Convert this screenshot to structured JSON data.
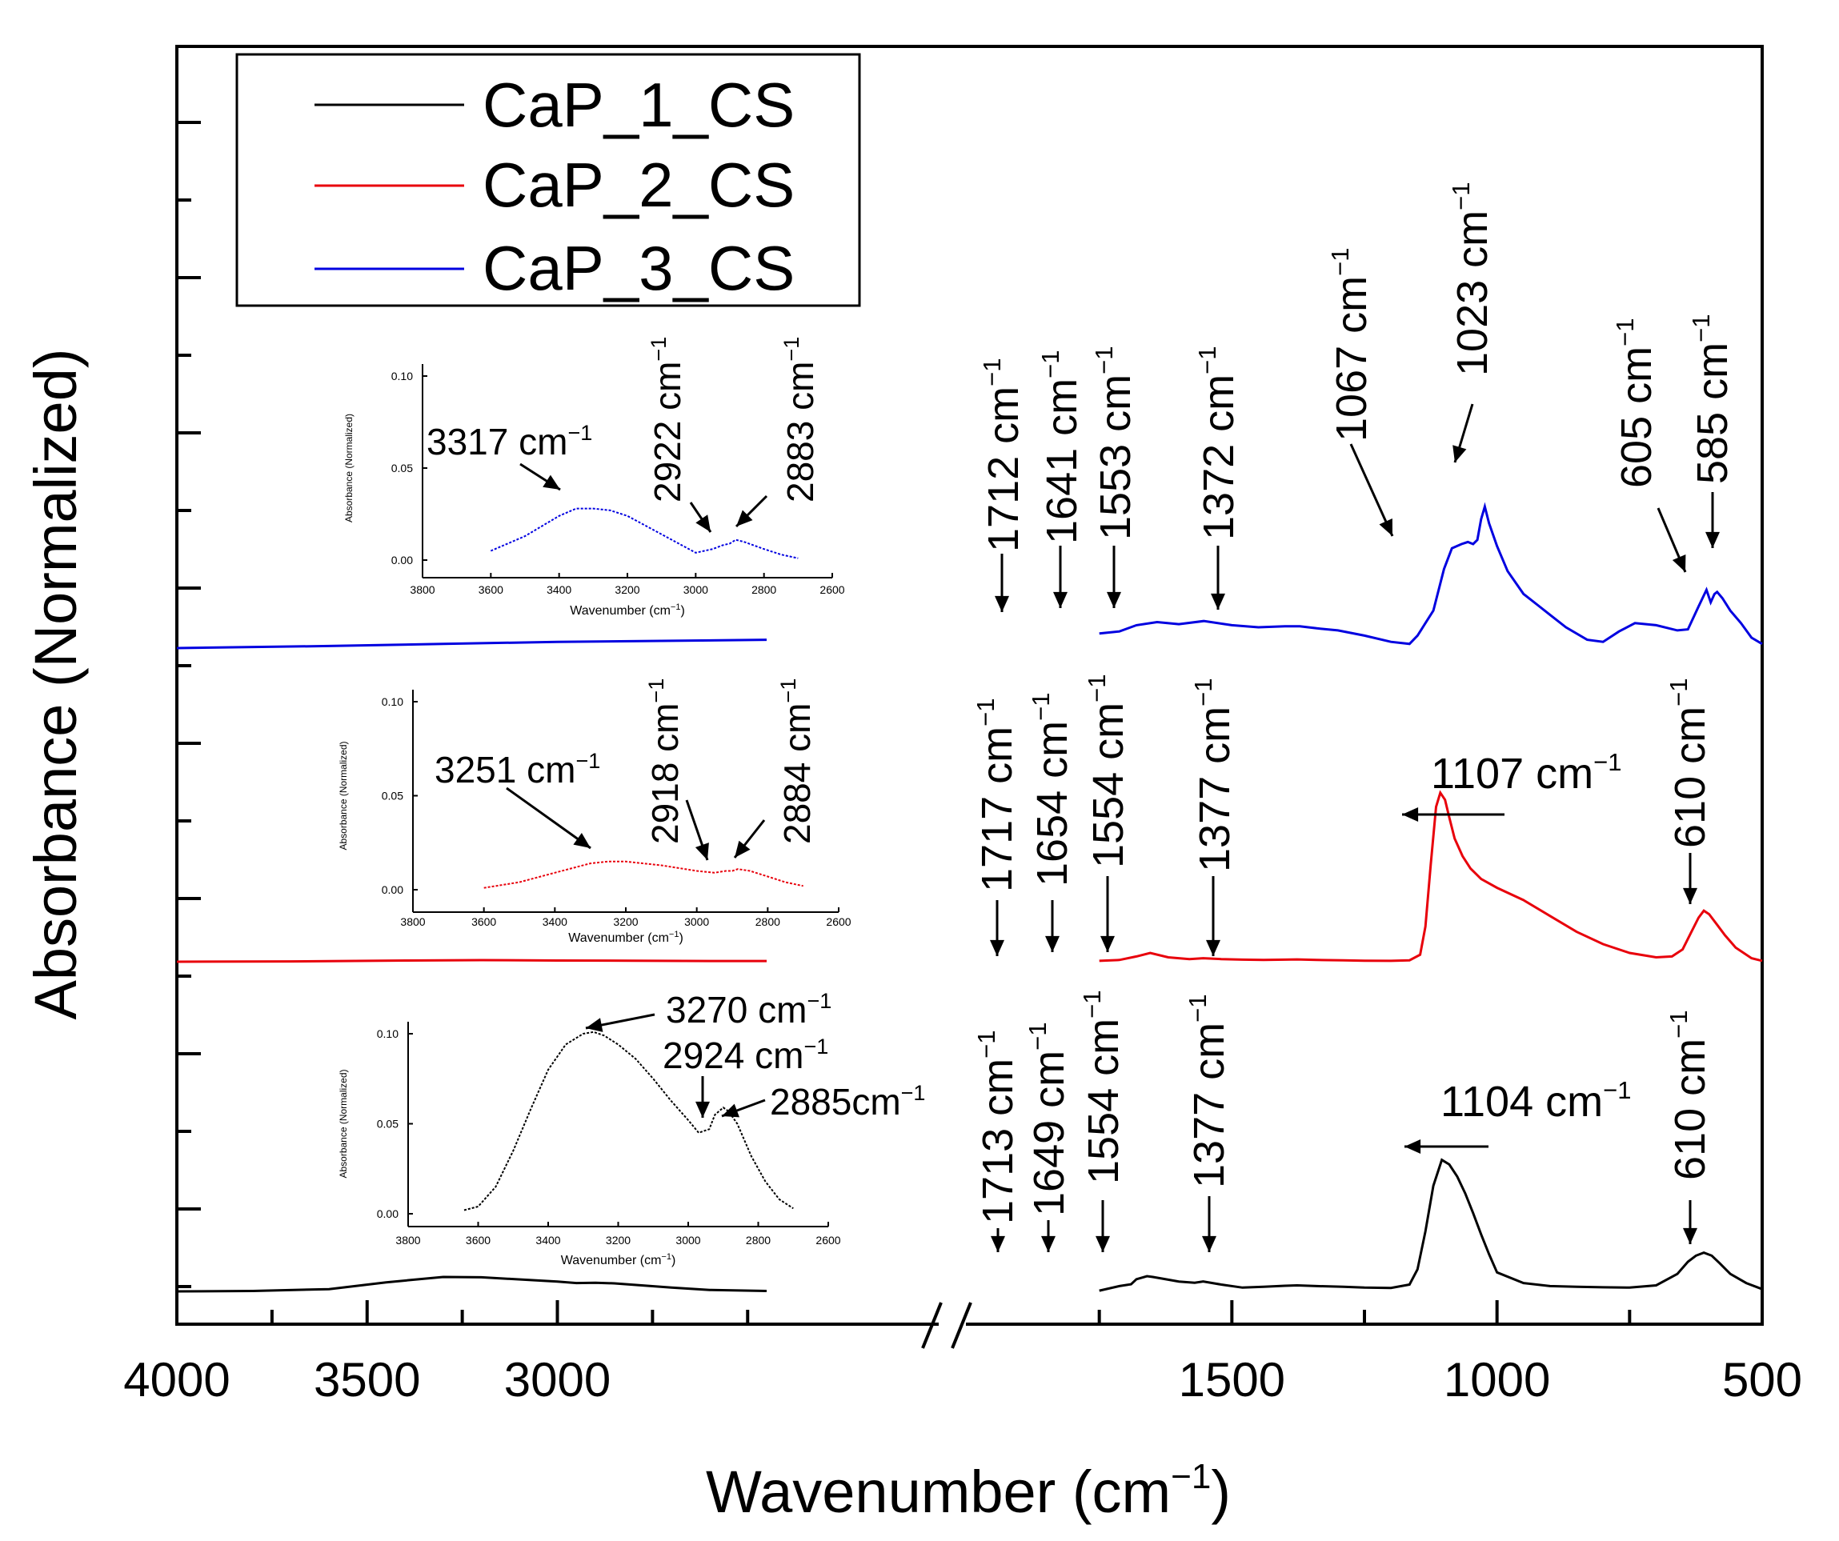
{
  "chart_data": {
    "type": "line",
    "title": "",
    "xlabel": "Wavenumber (cm",
    "xlabel_sup": "−1",
    "xlabel_close": ")",
    "ylabel": "Absorbance (Normalized)",
    "y_ticks_labeled": false,
    "x_axis": {
      "reversed": true,
      "segments": [
        {
          "range": [
            4000,
            2000
          ],
          "ticks": [
            4000,
            3500,
            3000
          ]
        },
        {
          "range": [
            2000,
            500
          ],
          "ticks": [
            1500,
            1000,
            500
          ]
        }
      ],
      "tick_labels": [
        "4000",
        "3500",
        "3000",
        "1500",
        "1000",
        "500"
      ],
      "break": true
    },
    "legend": {
      "placement": "top-left",
      "entries": [
        {
          "name": "CaP_1_CS",
          "color": "#000000"
        },
        {
          "name": "CaP_2_CS",
          "color": "#e8000b"
        },
        {
          "name": "CaP_3_CS",
          "color": "#0000e0"
        }
      ]
    },
    "series": [
      {
        "name": "CaP_1_CS",
        "color": "#000000",
        "panel": "bottom",
        "x": [
          4000,
          3800,
          3600,
          3450,
          3300,
          3200,
          3000,
          2950,
          2900,
          2850,
          2700,
          2600,
          2450,
          1750,
          1712,
          1690,
          1680,
          1660,
          1649,
          1620,
          1600,
          1570,
          1554,
          1520,
          1480,
          1440,
          1400,
          1377,
          1340,
          1290,
          1250,
          1200,
          1165,
          1150,
          1135,
          1120,
          1104,
          1090,
          1075,
          1060,
          1045,
          1030,
          1015,
          1000,
          950,
          900,
          850,
          800,
          750,
          700,
          660,
          640,
          625,
          610,
          595,
          580,
          560,
          530,
          500
        ],
        "y": [
          0.005,
          0.008,
          0.02,
          0.065,
          0.1,
          0.098,
          0.07,
          0.06,
          0.062,
          0.058,
          0.03,
          0.015,
          0.008,
          0.01,
          0.04,
          0.052,
          0.085,
          0.105,
          0.1,
          0.082,
          0.07,
          0.062,
          0.07,
          0.05,
          0.03,
          0.035,
          0.042,
          0.045,
          0.04,
          0.035,
          0.03,
          0.028,
          0.05,
          0.15,
          0.4,
          0.7,
          0.87,
          0.84,
          0.76,
          0.65,
          0.52,
          0.38,
          0.25,
          0.13,
          0.06,
          0.04,
          0.035,
          0.032,
          0.03,
          0.045,
          0.12,
          0.2,
          0.24,
          0.26,
          0.24,
          0.19,
          0.12,
          0.06,
          0.02
        ]
      },
      {
        "name": "CaP_2_CS",
        "color": "#e8000b",
        "panel": "middle",
        "x": [
          4000,
          3700,
          3400,
          3200,
          3000,
          2800,
          2600,
          2450,
          1750,
          1712,
          1680,
          1654,
          1620,
          1580,
          1554,
          1520,
          1480,
          1440,
          1400,
          1377,
          1340,
          1290,
          1250,
          1200,
          1165,
          1145,
          1135,
          1125,
          1115,
          1107,
          1098,
          1090,
          1080,
          1065,
          1050,
          1030,
          1000,
          950,
          900,
          850,
          800,
          750,
          700,
          670,
          650,
          635,
          620,
          610,
          600,
          585,
          570,
          550,
          520,
          500
        ],
        "y": [
          0.0,
          0.002,
          0.007,
          0.009,
          0.007,
          0.006,
          0.004,
          0.004,
          0.005,
          0.01,
          0.03,
          0.05,
          0.025,
          0.015,
          0.02,
          0.015,
          0.012,
          0.01,
          0.012,
          0.013,
          0.01,
          0.008,
          0.006,
          0.005,
          0.008,
          0.04,
          0.2,
          0.55,
          0.88,
          0.96,
          0.92,
          0.82,
          0.7,
          0.6,
          0.53,
          0.47,
          0.42,
          0.35,
          0.26,
          0.17,
          0.1,
          0.05,
          0.025,
          0.03,
          0.07,
          0.16,
          0.25,
          0.29,
          0.27,
          0.21,
          0.15,
          0.08,
          0.02,
          0.005
        ]
      },
      {
        "name": "CaP_3_CS",
        "color": "#0000e0",
        "panel": "top",
        "x": [
          4000,
          3600,
          3300,
          3000,
          2700,
          2450,
          1750,
          1712,
          1680,
          1641,
          1600,
          1553,
          1500,
          1450,
          1400,
          1372,
          1340,
          1300,
          1250,
          1200,
          1165,
          1150,
          1120,
          1100,
          1085,
          1067,
          1055,
          1045,
          1037,
          1030,
          1023,
          1015,
          1000,
          980,
          950,
          920,
          900,
          870,
          830,
          800,
          770,
          740,
          700,
          660,
          640,
          620,
          605,
          597,
          590,
          585,
          575,
          560,
          540,
          520,
          500
        ],
        "y": [
          0.0,
          0.01,
          0.02,
          0.03,
          0.035,
          0.04,
          0.07,
          0.08,
          0.11,
          0.125,
          0.115,
          0.13,
          0.11,
          0.1,
          0.105,
          0.105,
          0.095,
          0.085,
          0.06,
          0.03,
          0.02,
          0.06,
          0.18,
          0.38,
          0.48,
          0.5,
          0.51,
          0.5,
          0.52,
          0.62,
          0.68,
          0.6,
          0.49,
          0.37,
          0.26,
          0.2,
          0.16,
          0.1,
          0.04,
          0.03,
          0.08,
          0.12,
          0.11,
          0.085,
          0.09,
          0.2,
          0.28,
          0.22,
          0.26,
          0.27,
          0.24,
          0.18,
          0.12,
          0.05,
          0.02
        ]
      }
    ],
    "peak_annotations": [
      {
        "series": "CaP_3_CS",
        "labels": [
          "1712 cm",
          "1641 cm",
          "1553 cm",
          "1372 cm",
          "1067 cm",
          "1023 cm",
          "605 cm",
          "585 cm"
        ]
      },
      {
        "series": "CaP_2_CS",
        "labels": [
          "1717 cm",
          "1654 cm",
          "1554 cm",
          "1377 cm",
          "1107 cm",
          "610 cm"
        ]
      },
      {
        "series": "CaP_1_CS",
        "labels": [
          "1713 cm",
          "1649 cm",
          "1554 cm",
          "1377 cm",
          "1104 cm",
          "610 cm"
        ]
      }
    ],
    "insets": [
      {
        "series": "CaP_3_CS",
        "color": "#0000e0",
        "xlabel": "Wavenumber (cm",
        "ylabel": "Absorbance (Normalized)",
        "x_range": [
          3800,
          2600
        ],
        "y_range": [
          0,
          0.1
        ],
        "x_tick_labels": [
          "3800",
          "3600",
          "3400",
          "3200",
          "3000",
          "2800",
          "2600"
        ],
        "y_tick_labels": [
          "0.00",
          "0.05",
          "0.10"
        ],
        "x": [
          3600,
          3500,
          3400,
          3350,
          3300,
          3250,
          3200,
          3100,
          3000,
          2950,
          2922,
          2900,
          2883,
          2860,
          2800,
          2750,
          2700
        ],
        "y": [
          0.005,
          0.013,
          0.024,
          0.028,
          0.028,
          0.027,
          0.024,
          0.014,
          0.004,
          0.006,
          0.008,
          0.009,
          0.011,
          0.01,
          0.006,
          0.003,
          0.001
        ],
        "peaks": [
          "3317 cm",
          "2922 cm",
          "2883 cm"
        ]
      },
      {
        "series": "CaP_2_CS",
        "color": "#e8000b",
        "xlabel": "Wavenumber (cm",
        "ylabel": "Absorbance (Normalized)",
        "x_range": [
          3800,
          2600
        ],
        "y_range": [
          0,
          0.1
        ],
        "x_tick_labels": [
          "3800",
          "3600",
          "3400",
          "3200",
          "3000",
          "2800",
          "2600"
        ],
        "y_tick_labels": [
          "0.00",
          "0.05",
          "0.10"
        ],
        "x": [
          3600,
          3500,
          3400,
          3300,
          3251,
          3200,
          3100,
          3000,
          2950,
          2918,
          2900,
          2884,
          2850,
          2800,
          2750,
          2700
        ],
        "y": [
          0.001,
          0.004,
          0.009,
          0.014,
          0.015,
          0.015,
          0.013,
          0.01,
          0.009,
          0.01,
          0.01,
          0.011,
          0.01,
          0.007,
          0.004,
          0.002
        ],
        "peaks": [
          "3251 cm",
          "2918 cm",
          "2884 cm"
        ]
      },
      {
        "series": "CaP_1_CS",
        "color": "#000000",
        "xlabel": "Wavenumber (cm",
        "ylabel": "Absorbance (Normalized)",
        "x_range": [
          3800,
          2600
        ],
        "y_range": [
          0,
          0.1
        ],
        "x_tick_labels": [
          "3800",
          "3600",
          "3400",
          "3200",
          "3000",
          "2800",
          "2600"
        ],
        "y_tick_labels": [
          "0.00",
          "0.05",
          "0.10"
        ],
        "x": [
          3640,
          3600,
          3550,
          3500,
          3450,
          3400,
          3350,
          3300,
          3270,
          3240,
          3200,
          3150,
          3100,
          3050,
          3000,
          2970,
          2940,
          2924,
          2900,
          2885,
          2860,
          2820,
          2780,
          2740,
          2700
        ],
        "y": [
          0.002,
          0.004,
          0.015,
          0.035,
          0.058,
          0.08,
          0.094,
          0.1,
          0.101,
          0.099,
          0.094,
          0.086,
          0.075,
          0.063,
          0.052,
          0.045,
          0.047,
          0.055,
          0.059,
          0.057,
          0.05,
          0.032,
          0.018,
          0.008,
          0.003
        ],
        "peaks": [
          "3270 cm",
          "2924 cm",
          "2885cm"
        ]
      }
    ],
    "superscript": "−1"
  }
}
